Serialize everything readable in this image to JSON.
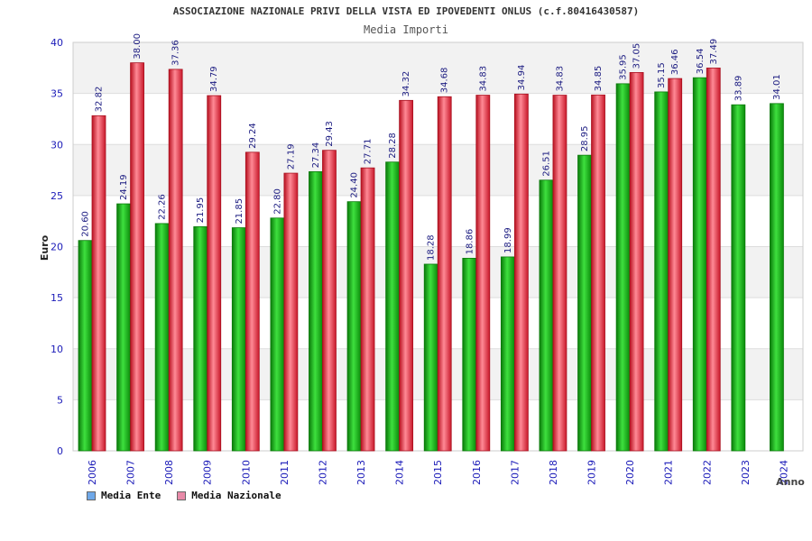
{
  "header": {
    "title": "ASSOCIAZIONE NAZIONALE PRIVI DELLA VISTA ED IPOVEDENTI ONLUS (c.f.80416430587)",
    "subtitle": "Media Importi"
  },
  "colors": {
    "ente": "#18b818",
    "ente_dark": "#0a7a0a",
    "nazionale": "#e8283c",
    "nazionale_dark": "#a8101f",
    "legend_ente": "#6fa8e8",
    "legend_nazionale": "#e88aa8",
    "axis_text": "#1a1ab8",
    "label_text": "#1a1a80",
    "band": "#f2f2f2"
  },
  "legend": {
    "ente_label": "Media Ente",
    "nazionale_label": "Media Nazionale"
  },
  "chart_data": {
    "type": "bar",
    "title": "Media Importi",
    "xlabel": "Anno",
    "ylabel": "Euro",
    "ylim": [
      0,
      40
    ],
    "yticks": [
      0,
      5,
      10,
      15,
      20,
      25,
      30,
      35,
      40
    ],
    "categories": [
      "2006",
      "2007",
      "2008",
      "2009",
      "2010",
      "2011",
      "2012",
      "2013",
      "2014",
      "2015",
      "2016",
      "2017",
      "2018",
      "2019",
      "2020",
      "2021",
      "2022",
      "2023",
      "2024"
    ],
    "series": [
      {
        "name": "Media Ente",
        "values": [
          20.6,
          24.19,
          22.26,
          21.95,
          21.85,
          22.8,
          27.34,
          24.4,
          28.28,
          18.28,
          18.86,
          18.99,
          26.51,
          28.95,
          35.95,
          35.15,
          36.54,
          33.89,
          34.01
        ],
        "labels": [
          "20.60",
          "24.19",
          "22.26",
          "21.95",
          "21.85",
          "22.80",
          "27.34",
          "24.40",
          "28.28",
          "18.28",
          "18.86",
          "18.99",
          "26.51",
          "28.95",
          "35.95",
          "35.15",
          "36.54",
          "33.89",
          "34.01"
        ]
      },
      {
        "name": "Media Nazionale",
        "values": [
          32.82,
          38.0,
          37.36,
          34.79,
          29.24,
          27.19,
          29.43,
          27.71,
          34.32,
          34.68,
          34.83,
          34.94,
          34.83,
          34.85,
          37.05,
          36.46,
          37.49,
          null,
          null
        ],
        "labels": [
          "32.82",
          "38.00",
          "37.36",
          "34.79",
          "29.24",
          "27.19",
          "29.43",
          "27.71",
          "34.32",
          "34.68",
          "34.83",
          "34.94",
          "34.83",
          "34.85",
          "37.05",
          "36.46",
          "37.49",
          "",
          ""
        ]
      }
    ]
  }
}
